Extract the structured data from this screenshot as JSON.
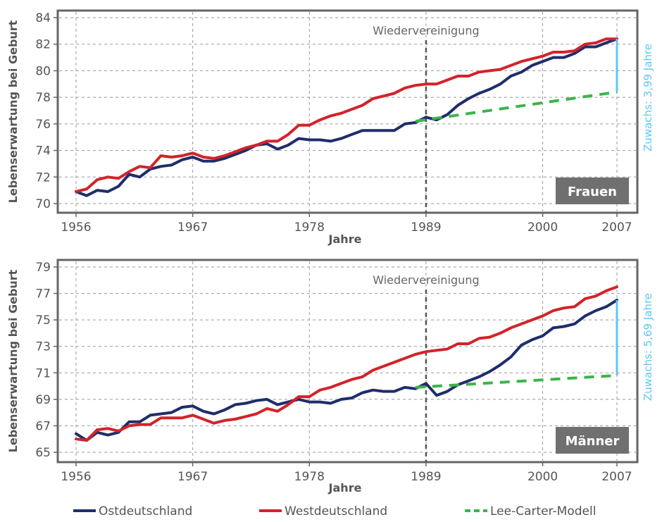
{
  "colors": {
    "ost": "#1f2d6b",
    "west": "#d2232a",
    "lee_carter": "#3cb44b",
    "zuwachs": "#5ec8f0",
    "badge": "#707070",
    "grid": "#999999",
    "frame": "#666666"
  },
  "legend": [
    {
      "key": "ost",
      "label": "Ostdeutschland",
      "style": "solid"
    },
    {
      "key": "west",
      "label": "Westdeutschland",
      "style": "solid"
    },
    {
      "key": "lee_carter",
      "label": "Lee-Carter-Modell",
      "style": "dashed"
    }
  ],
  "chart_data": [
    {
      "type": "line",
      "badge": "Frauen",
      "annotation": "Wiedervereinigung",
      "annotation_year": 1989,
      "ylabel": "Lebenserwartung bei Geburt",
      "xlabel": "Jahre",
      "xlim": [
        1956,
        2007
      ],
      "ylim": [
        70,
        84
      ],
      "xticks": [
        1956,
        1967,
        1978,
        1989,
        2000,
        2007
      ],
      "yticks": [
        70,
        72,
        74,
        76,
        78,
        80,
        82,
        84
      ],
      "grid": true,
      "zuwachs_label": "Zuwachs: 3,99 Jahre",
      "zuwachs_year": 2007,
      "zuwachs_range": [
        78.4,
        82.4
      ],
      "x": [
        1956,
        1957,
        1958,
        1959,
        1960,
        1961,
        1962,
        1963,
        1964,
        1965,
        1966,
        1967,
        1968,
        1969,
        1970,
        1971,
        1972,
        1973,
        1974,
        1975,
        1976,
        1977,
        1978,
        1979,
        1980,
        1981,
        1982,
        1983,
        1984,
        1985,
        1986,
        1987,
        1988,
        1989,
        1990,
        1991,
        1992,
        1993,
        1994,
        1995,
        1996,
        1997,
        1998,
        1999,
        2000,
        2001,
        2002,
        2003,
        2004,
        2005,
        2006,
        2007
      ],
      "series": [
        {
          "name": "Ostdeutschland",
          "key": "ost",
          "values": [
            70.9,
            70.6,
            71.0,
            70.9,
            71.3,
            72.2,
            72.0,
            72.6,
            72.8,
            72.9,
            73.3,
            73.5,
            73.2,
            73.2,
            73.4,
            73.7,
            74.0,
            74.4,
            74.5,
            74.1,
            74.4,
            74.9,
            74.8,
            74.8,
            74.7,
            74.9,
            75.2,
            75.5,
            75.5,
            75.5,
            75.5,
            76.0,
            76.1,
            76.5,
            76.3,
            76.7,
            77.4,
            77.9,
            78.3,
            78.6,
            79.0,
            79.6,
            79.9,
            80.4,
            80.7,
            81.0,
            81.0,
            81.3,
            81.8,
            81.8,
            82.1,
            82.4
          ]
        },
        {
          "name": "Westdeutschland",
          "key": "west",
          "values": [
            70.9,
            71.1,
            71.8,
            72.0,
            71.9,
            72.4,
            72.8,
            72.7,
            73.6,
            73.5,
            73.6,
            73.8,
            73.5,
            73.4,
            73.6,
            73.9,
            74.2,
            74.4,
            74.7,
            74.7,
            75.2,
            75.9,
            75.9,
            76.3,
            76.6,
            76.8,
            77.1,
            77.4,
            77.9,
            78.1,
            78.3,
            78.7,
            78.9,
            79.0,
            79.0,
            79.3,
            79.6,
            79.6,
            79.9,
            80.0,
            80.1,
            80.4,
            80.7,
            80.9,
            81.1,
            81.4,
            81.4,
            81.5,
            82.0,
            82.1,
            82.4,
            82.4
          ]
        },
        {
          "name": "Lee-Carter-Modell",
          "key": "lee_carter",
          "dashed": true,
          "x": [
            1988,
            2007
          ],
          "values": [
            76.2,
            78.4
          ]
        }
      ]
    },
    {
      "type": "line",
      "badge": "Männer",
      "annotation": "Wiedervereinigung",
      "annotation_year": 1989,
      "ylabel": "Lebenserwartung bei Geburt",
      "xlabel": "Jahre",
      "xlim": [
        1956,
        2007
      ],
      "ylim": [
        65,
        79
      ],
      "xticks": [
        1956,
        1967,
        1978,
        1989,
        2000,
        2007
      ],
      "yticks": [
        65,
        67,
        69,
        71,
        73,
        75,
        77,
        79
      ],
      "grid": true,
      "zuwachs_label": "Zuwachs: 5,69 Jahre",
      "zuwachs_year": 2007,
      "zuwachs_range": [
        70.8,
        76.5
      ],
      "x": [
        1956,
        1957,
        1958,
        1959,
        1960,
        1961,
        1962,
        1963,
        1964,
        1965,
        1966,
        1967,
        1968,
        1969,
        1970,
        1971,
        1972,
        1973,
        1974,
        1975,
        1976,
        1977,
        1978,
        1979,
        1980,
        1981,
        1982,
        1983,
        1984,
        1985,
        1986,
        1987,
        1988,
        1989,
        1990,
        1991,
        1992,
        1993,
        1994,
        1995,
        1996,
        1997,
        1998,
        1999,
        2000,
        2001,
        2002,
        2003,
        2004,
        2005,
        2006,
        2007
      ],
      "series": [
        {
          "name": "Ostdeutschland",
          "key": "ost",
          "values": [
            66.4,
            65.9,
            66.5,
            66.3,
            66.5,
            67.3,
            67.3,
            67.8,
            67.9,
            68.0,
            68.4,
            68.5,
            68.1,
            67.9,
            68.2,
            68.6,
            68.7,
            68.9,
            69.0,
            68.6,
            68.8,
            69.0,
            68.8,
            68.8,
            68.7,
            69.0,
            69.1,
            69.5,
            69.7,
            69.6,
            69.6,
            69.9,
            69.8,
            70.2,
            69.3,
            69.6,
            70.1,
            70.4,
            70.7,
            71.1,
            71.6,
            72.2,
            73.1,
            73.5,
            73.8,
            74.4,
            74.5,
            74.7,
            75.3,
            75.7,
            76.0,
            76.5
          ]
        },
        {
          "name": "Westdeutschland",
          "key": "west",
          "values": [
            66.0,
            65.9,
            66.7,
            66.8,
            66.6,
            67.0,
            67.1,
            67.1,
            67.6,
            67.6,
            67.6,
            67.8,
            67.5,
            67.2,
            67.4,
            67.5,
            67.7,
            67.9,
            68.3,
            68.1,
            68.6,
            69.2,
            69.2,
            69.7,
            69.9,
            70.2,
            70.5,
            70.7,
            71.2,
            71.5,
            71.8,
            72.1,
            72.4,
            72.6,
            72.7,
            72.8,
            73.2,
            73.2,
            73.6,
            73.7,
            74.0,
            74.4,
            74.7,
            75.0,
            75.3,
            75.7,
            75.9,
            76.0,
            76.6,
            76.8,
            77.2,
            77.5
          ]
        },
        {
          "name": "Lee-Carter-Modell",
          "key": "lee_carter",
          "dashed": true,
          "x": [
            1988,
            2007
          ],
          "values": [
            69.9,
            70.8
          ]
        }
      ]
    }
  ]
}
